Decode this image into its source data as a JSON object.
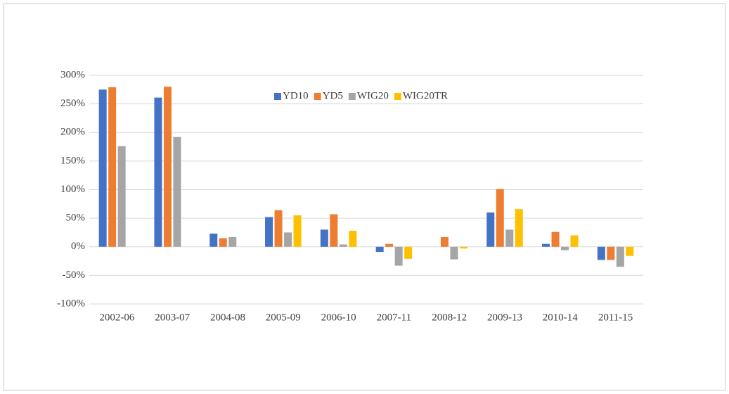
{
  "chart_data": {
    "type": "bar",
    "categories": [
      "2002-06",
      "2003-07",
      "2004-08",
      "2005-09",
      "2006-10",
      "2007-11",
      "2008-12",
      "2009-13",
      "2010-14",
      "2011-15"
    ],
    "series": [
      {
        "name": "YD10",
        "color": "#4472c4",
        "values": [
          275,
          261,
          23,
          52,
          30,
          -9,
          null,
          60,
          5,
          -23
        ]
      },
      {
        "name": "YD5",
        "color": "#ed7d31",
        "values": [
          279,
          280,
          15,
          64,
          57,
          5,
          17,
          101,
          26,
          -23
        ]
      },
      {
        "name": "WIG20",
        "color": "#a5a5a5",
        "values": [
          176,
          192,
          17,
          25,
          4,
          -33,
          -22,
          30,
          -6,
          -35
        ]
      },
      {
        "name": "WIG20TR",
        "color": "#ffc000",
        "values": [
          null,
          null,
          null,
          55,
          28,
          -21,
          -3,
          66,
          20,
          -16
        ]
      }
    ],
    "ylim": [
      -100,
      300
    ],
    "yticks": [
      {
        "value": -100,
        "label": "-100%"
      },
      {
        "value": -50,
        "label": "-50%"
      },
      {
        "value": 0,
        "label": "0%"
      },
      {
        "value": 50,
        "label": "50%"
      },
      {
        "value": 100,
        "label": "100%"
      },
      {
        "value": 150,
        "label": "150%"
      },
      {
        "value": 200,
        "label": "200%"
      },
      {
        "value": 250,
        "label": "250%"
      },
      {
        "value": 300,
        "label": "300%"
      }
    ],
    "grid": true,
    "legend": "top"
  }
}
